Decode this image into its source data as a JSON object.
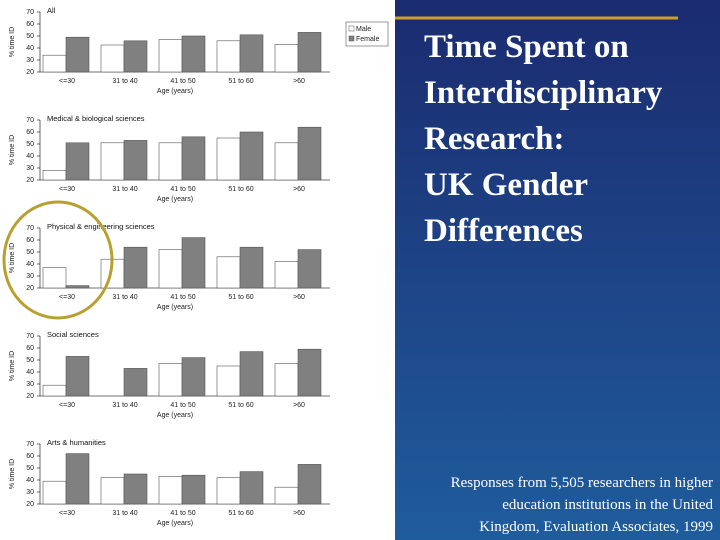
{
  "slide": {
    "title_lines": [
      "Time Spent on",
      "Interdisciplinary",
      "Research:",
      "UK Gender",
      "Differences"
    ],
    "footnote_lines": [
      "Responses from 5,505 researchers in higher",
      "education institutions in the United",
      "Kingdom, Evaluation Associates, 1999"
    ]
  },
  "chart_data": [
    {
      "type": "bar",
      "title": "All",
      "x_label": "Age (years)",
      "y_label": "% time ID",
      "categories": [
        "<=30",
        "31 to 40",
        "41 to 50",
        "51 to 60",
        ">60"
      ],
      "series": [
        {
          "name": "Male",
          "color": "#ffffff",
          "values": [
            34,
            42.5,
            47,
            46,
            43
          ]
        },
        {
          "name": "Female",
          "color": "#808080",
          "values": [
            49,
            46,
            50,
            51,
            53
          ]
        }
      ],
      "ylim": [
        20,
        70
      ],
      "yticks": [
        20,
        30,
        40,
        50,
        60,
        70
      ],
      "legend": "right"
    },
    {
      "type": "bar",
      "title": "Medical & biological sciences",
      "x_label": "Age (years)",
      "y_label": "% time ID",
      "categories": [
        "<=30",
        "31 to 40",
        "41 to 50",
        "51 to 60",
        ">60"
      ],
      "series": [
        {
          "color": "#ffffff",
          "values": [
            28,
            51,
            51,
            55,
            51
          ]
        },
        {
          "color": "#808080",
          "values": [
            51,
            53,
            56,
            60,
            64
          ]
        }
      ],
      "ylim": [
        20,
        70
      ],
      "yticks": [
        20,
        30,
        40,
        50,
        60,
        70
      ]
    },
    {
      "type": "bar",
      "title": "Physical & engineering sciences",
      "x_label": "Age (years)",
      "y_label": "% time ID",
      "categories": [
        "<=30",
        "31 to 40",
        "41 to 50",
        "51 to 60",
        ">60"
      ],
      "series": [
        {
          "color": "#ffffff",
          "values": [
            37,
            44,
            52,
            46,
            42
          ]
        },
        {
          "color": "#808080",
          "values": [
            22,
            54,
            62,
            54,
            52
          ]
        }
      ],
      "ylim": [
        20,
        70
      ],
      "yticks": [
        20,
        30,
        40,
        50,
        60,
        70
      ]
    },
    {
      "type": "bar",
      "title": "Social sciences",
      "x_label": "Age (years)",
      "y_label": "% time ID",
      "categories": [
        "<=30",
        "31 to 40",
        "41 to 50",
        "51 to 60",
        ">60"
      ],
      "series": [
        {
          "color": "#ffffff",
          "values": [
            29,
            null,
            47,
            45,
            47
          ]
        },
        {
          "color": "#808080",
          "values": [
            53,
            43,
            52,
            57,
            59
          ]
        }
      ],
      "ylim": [
        20,
        70
      ],
      "yticks": [
        20,
        30,
        40,
        50,
        60,
        70
      ]
    },
    {
      "type": "bar",
      "title": "Arts & humanities",
      "x_label": "Age (years)",
      "y_label": "% time ID",
      "categories": [
        "<=30",
        "31 to 40",
        "41 to 50",
        "51 to 60",
        ">60"
      ],
      "series": [
        {
          "color": "#ffffff",
          "values": [
            39,
            42,
            43,
            42,
            34
          ]
        },
        {
          "color": "#808080",
          "values": [
            62,
            45,
            44,
            47,
            53
          ]
        }
      ],
      "ylim": [
        20,
        70
      ],
      "yticks": [
        20,
        30,
        40,
        50,
        60,
        70
      ]
    }
  ]
}
